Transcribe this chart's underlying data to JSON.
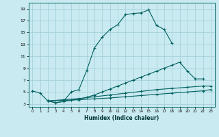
{
  "xlabel": "Humidex (Indice chaleur)",
  "bg_color": "#c8eaf0",
  "line_color": "#006060",
  "grid_color": "#a0ccd8",
  "xlim": [
    -0.5,
    23.5
  ],
  "ylim": [
    2.5,
    20
  ],
  "xticks": [
    0,
    1,
    2,
    3,
    4,
    5,
    6,
    7,
    8,
    9,
    10,
    11,
    12,
    13,
    14,
    15,
    16,
    17,
    18,
    19,
    20,
    21,
    22,
    23
  ],
  "yticks": [
    3,
    5,
    7,
    9,
    11,
    13,
    15,
    17,
    19
  ],
  "line1_x": [
    0,
    1,
    2,
    3,
    4,
    5,
    6,
    7,
    8,
    9,
    10,
    11,
    12,
    13,
    14,
    15,
    16,
    17,
    18
  ],
  "line1_y": [
    5.2,
    4.8,
    3.5,
    3.2,
    3.4,
    5.0,
    5.4,
    8.6,
    12.4,
    14.2,
    15.5,
    16.3,
    18.0,
    18.2,
    18.3,
    18.8,
    16.2,
    15.5,
    13.2
  ],
  "line2_x": [
    2,
    3,
    4,
    5,
    6,
    7,
    8,
    9,
    10,
    11,
    12,
    13,
    14,
    15,
    16,
    17,
    18,
    19,
    20,
    21,
    22
  ],
  "line2_y": [
    3.5,
    3.2,
    3.4,
    3.6,
    3.8,
    4.1,
    4.5,
    5.0,
    5.5,
    6.0,
    6.5,
    7.0,
    7.5,
    8.0,
    8.5,
    9.0,
    9.5,
    10.0,
    8.5,
    7.2,
    7.2
  ],
  "line3_x": [
    2,
    4,
    6,
    8,
    10,
    12,
    14,
    16,
    18,
    20,
    22,
    23
  ],
  "line3_y": [
    3.5,
    3.7,
    3.9,
    4.2,
    4.5,
    4.8,
    5.1,
    5.4,
    5.6,
    5.8,
    6.0,
    6.0
  ],
  "line4_x": [
    2,
    4,
    6,
    8,
    10,
    12,
    14,
    16,
    18,
    20,
    22,
    23
  ],
  "line4_y": [
    3.5,
    3.6,
    3.7,
    3.85,
    4.0,
    4.2,
    4.4,
    4.6,
    4.8,
    5.0,
    5.2,
    5.4
  ]
}
